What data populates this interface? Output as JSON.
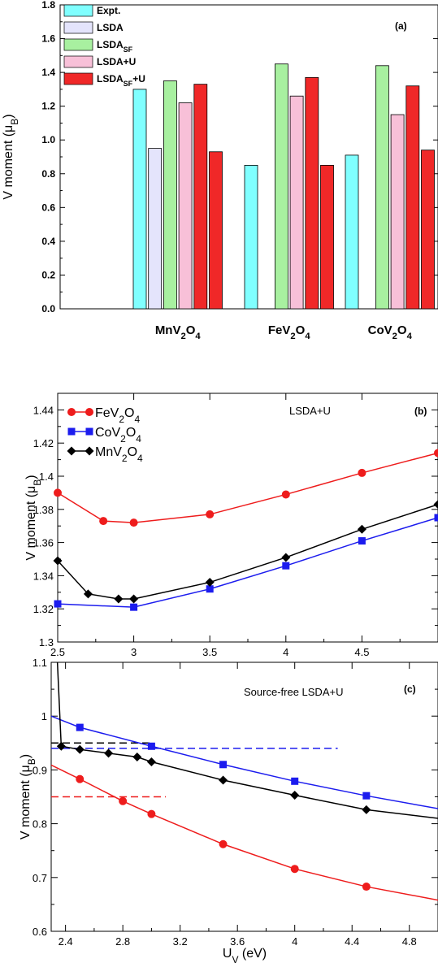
{
  "chart_data": [
    {
      "panel": "(a)",
      "type": "bar",
      "ylabel": "V moment (μ_B)",
      "ylim": [
        0,
        1.8
      ],
      "yticks": [
        "0.0",
        "0.2",
        "0.4",
        "0.6",
        "0.8",
        "1.0",
        "1.2",
        "1.4",
        "1.6",
        "1.8"
      ],
      "categories": [
        {
          "base": "MnV",
          "s1": "2",
          "mid": "O",
          "s2": "4"
        },
        {
          "base": "FeV",
          "s1": "2",
          "mid": "O",
          "s2": "4"
        },
        {
          "base": "CoV",
          "s1": "2",
          "mid": "O",
          "s2": "4"
        }
      ],
      "legend_position": "top-left",
      "series": [
        {
          "name": "Expt.",
          "sub": "",
          "tail": "",
          "color": "#80ffff",
          "values": [
            1.3,
            0.85,
            0.91
          ]
        },
        {
          "name": "LSDA",
          "sub": "",
          "tail": "",
          "color": "#e4e4fc",
          "values": [
            0.95,
            null,
            null
          ]
        },
        {
          "name": "LSDA",
          "sub": "SF",
          "tail": "",
          "color": "#a8f0a0",
          "values": [
            1.35,
            1.45,
            1.44
          ]
        },
        {
          "name": "LSDA+U",
          "sub": "",
          "tail": "",
          "color": "#f8c0d8",
          "values": [
            1.22,
            1.26,
            1.15
          ]
        },
        {
          "name": "LSDA",
          "sub": "SF",
          "tail": "+U",
          "color": "#f02828",
          "values": [
            1.33,
            1.37,
            1.32
          ]
        },
        {
          "name": "",
          "sub": "",
          "tail": "",
          "color": "#f02828",
          "values": [
            0.93,
            0.85,
            0.94
          ]
        }
      ]
    },
    {
      "panel": "(b)",
      "type": "line",
      "annotation": "LSDA+U",
      "ylabel": "V moment (μ_B)",
      "xlim": [
        2.5,
        5.0
      ],
      "ylim": [
        1.3,
        1.45
      ],
      "xticks": [
        "2.5",
        "3",
        "3.5",
        "4",
        "4.5"
      ],
      "yticks": [
        "1.3",
        "1.32",
        "1.34",
        "1.36",
        "1.38",
        "1.4",
        "1.42",
        "1.44"
      ],
      "series": [
        {
          "name": "FeV",
          "s1": "2",
          "mid": "O",
          "s2": "4",
          "color": "#ee1c1c",
          "marker": "circle",
          "x": [
            2.5,
            2.8,
            3.0,
            3.5,
            4.0,
            4.5,
            5.0
          ],
          "y": [
            1.39,
            1.373,
            1.372,
            1.377,
            1.389,
            1.402,
            1.414
          ]
        },
        {
          "name": "CoV",
          "s1": "2",
          "mid": "O",
          "s2": "4",
          "color": "#1c1cee",
          "marker": "square",
          "x": [
            2.5,
            3.0,
            3.5,
            4.0,
            4.5,
            5.0
          ],
          "y": [
            1.323,
            1.321,
            1.332,
            1.346,
            1.361,
            1.375
          ]
        },
        {
          "name": "MnV",
          "s1": "2",
          "mid": "O",
          "s2": "4",
          "color": "#000000",
          "marker": "diamond",
          "x": [
            2.5,
            2.7,
            2.9,
            3.0,
            3.5,
            4.0,
            4.5,
            5.0
          ],
          "y": [
            1.349,
            1.329,
            1.326,
            1.326,
            1.336,
            1.351,
            1.368,
            1.383
          ]
        }
      ]
    },
    {
      "panel": "(c)",
      "type": "line",
      "annotation": "Source-free LSDA+U",
      "ylabel": "V moment (μ_B)",
      "xlabel": "U_V (eV)",
      "xlim": [
        2.3,
        5.0
      ],
      "ylim": [
        0.6,
        1.1
      ],
      "xticks": [
        "2.4",
        "2.8",
        "3.2",
        "3.6",
        "4",
        "4.4",
        "4.8"
      ],
      "yticks": [
        "0.6",
        "0.7",
        "0.8",
        "0.9",
        "1"
      ],
      "series": [
        {
          "color": "#1c1cee",
          "marker": "square",
          "x": [
            2.3,
            2.5,
            3.0,
            3.5,
            4.0,
            4.5,
            5.0
          ],
          "y": [
            1.0,
            0.979,
            0.944,
            0.91,
            0.879,
            0.852,
            0.828
          ]
        },
        {
          "color": "#000000",
          "marker": "diamond",
          "x": [
            2.34,
            2.37,
            2.5,
            2.7,
            2.9,
            3.0,
            3.5,
            4.0,
            4.5,
            5.0
          ],
          "y": [
            1.12,
            0.944,
            0.938,
            0.931,
            0.924,
            0.915,
            0.881,
            0.853,
            0.826,
            0.81
          ]
        },
        {
          "color": "#ee1c1c",
          "marker": "circle",
          "x": [
            2.3,
            2.5,
            2.8,
            3.0,
            3.5,
            4.0,
            4.5,
            5.0
          ],
          "y": [
            0.909,
            0.883,
            0.842,
            0.818,
            0.762,
            0.716,
            0.683,
            0.658
          ]
        }
      ],
      "reference_lines": [
        {
          "color": "#000000",
          "y": 0.95,
          "x": [
            2.3,
            3.0
          ]
        },
        {
          "color": "#1c1cee",
          "y": 0.94,
          "x": [
            2.3,
            4.3
          ]
        },
        {
          "color": "#ee1c1c",
          "y": 0.85,
          "x": [
            2.3,
            3.1
          ]
        }
      ]
    }
  ]
}
